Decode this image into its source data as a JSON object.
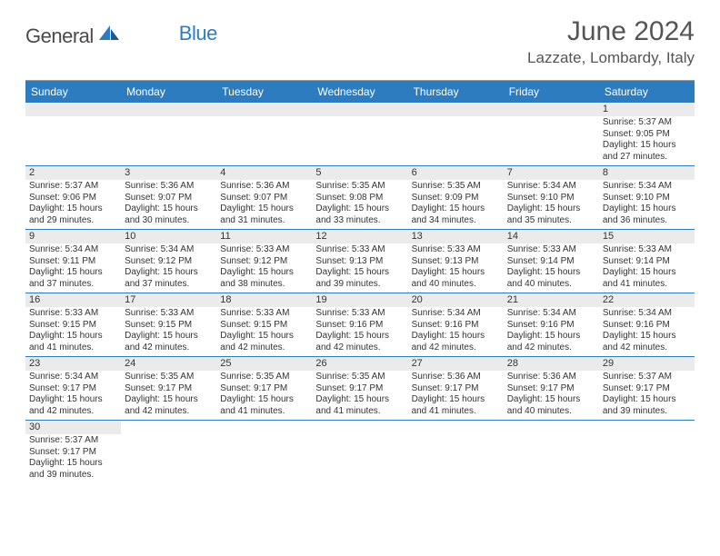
{
  "brand": {
    "part1": "General",
    "part2": "Blue",
    "sail_color": "#2d7cc0",
    "text_color": "#4a4a4a"
  },
  "title": "June 2024",
  "location": "Lazzate, Lombardy, Italy",
  "header_bg": "#2d7cc0",
  "header_text_color": "#ffffff",
  "daynum_bg": "#ebebeb",
  "row_border_color": "#2d7cc0",
  "dow": [
    "Sunday",
    "Monday",
    "Tuesday",
    "Wednesday",
    "Thursday",
    "Friday",
    "Saturday"
  ],
  "weeks": [
    [
      null,
      null,
      null,
      null,
      null,
      null,
      {
        "n": "1",
        "sr": "5:37 AM",
        "ss": "9:05 PM",
        "dl": "15 hours and 27 minutes."
      }
    ],
    [
      {
        "n": "2",
        "sr": "5:37 AM",
        "ss": "9:06 PM",
        "dl": "15 hours and 29 minutes."
      },
      {
        "n": "3",
        "sr": "5:36 AM",
        "ss": "9:07 PM",
        "dl": "15 hours and 30 minutes."
      },
      {
        "n": "4",
        "sr": "5:36 AM",
        "ss": "9:07 PM",
        "dl": "15 hours and 31 minutes."
      },
      {
        "n": "5",
        "sr": "5:35 AM",
        "ss": "9:08 PM",
        "dl": "15 hours and 33 minutes."
      },
      {
        "n": "6",
        "sr": "5:35 AM",
        "ss": "9:09 PM",
        "dl": "15 hours and 34 minutes."
      },
      {
        "n": "7",
        "sr": "5:34 AM",
        "ss": "9:10 PM",
        "dl": "15 hours and 35 minutes."
      },
      {
        "n": "8",
        "sr": "5:34 AM",
        "ss": "9:10 PM",
        "dl": "15 hours and 36 minutes."
      }
    ],
    [
      {
        "n": "9",
        "sr": "5:34 AM",
        "ss": "9:11 PM",
        "dl": "15 hours and 37 minutes."
      },
      {
        "n": "10",
        "sr": "5:34 AM",
        "ss": "9:12 PM",
        "dl": "15 hours and 37 minutes."
      },
      {
        "n": "11",
        "sr": "5:33 AM",
        "ss": "9:12 PM",
        "dl": "15 hours and 38 minutes."
      },
      {
        "n": "12",
        "sr": "5:33 AM",
        "ss": "9:13 PM",
        "dl": "15 hours and 39 minutes."
      },
      {
        "n": "13",
        "sr": "5:33 AM",
        "ss": "9:13 PM",
        "dl": "15 hours and 40 minutes."
      },
      {
        "n": "14",
        "sr": "5:33 AM",
        "ss": "9:14 PM",
        "dl": "15 hours and 40 minutes."
      },
      {
        "n": "15",
        "sr": "5:33 AM",
        "ss": "9:14 PM",
        "dl": "15 hours and 41 minutes."
      }
    ],
    [
      {
        "n": "16",
        "sr": "5:33 AM",
        "ss": "9:15 PM",
        "dl": "15 hours and 41 minutes."
      },
      {
        "n": "17",
        "sr": "5:33 AM",
        "ss": "9:15 PM",
        "dl": "15 hours and 42 minutes."
      },
      {
        "n": "18",
        "sr": "5:33 AM",
        "ss": "9:15 PM",
        "dl": "15 hours and 42 minutes."
      },
      {
        "n": "19",
        "sr": "5:33 AM",
        "ss": "9:16 PM",
        "dl": "15 hours and 42 minutes."
      },
      {
        "n": "20",
        "sr": "5:34 AM",
        "ss": "9:16 PM",
        "dl": "15 hours and 42 minutes."
      },
      {
        "n": "21",
        "sr": "5:34 AM",
        "ss": "9:16 PM",
        "dl": "15 hours and 42 minutes."
      },
      {
        "n": "22",
        "sr": "5:34 AM",
        "ss": "9:16 PM",
        "dl": "15 hours and 42 minutes."
      }
    ],
    [
      {
        "n": "23",
        "sr": "5:34 AM",
        "ss": "9:17 PM",
        "dl": "15 hours and 42 minutes."
      },
      {
        "n": "24",
        "sr": "5:35 AM",
        "ss": "9:17 PM",
        "dl": "15 hours and 42 minutes."
      },
      {
        "n": "25",
        "sr": "5:35 AM",
        "ss": "9:17 PM",
        "dl": "15 hours and 41 minutes."
      },
      {
        "n": "26",
        "sr": "5:35 AM",
        "ss": "9:17 PM",
        "dl": "15 hours and 41 minutes."
      },
      {
        "n": "27",
        "sr": "5:36 AM",
        "ss": "9:17 PM",
        "dl": "15 hours and 41 minutes."
      },
      {
        "n": "28",
        "sr": "5:36 AM",
        "ss": "9:17 PM",
        "dl": "15 hours and 40 minutes."
      },
      {
        "n": "29",
        "sr": "5:37 AM",
        "ss": "9:17 PM",
        "dl": "15 hours and 39 minutes."
      }
    ],
    [
      {
        "n": "30",
        "sr": "5:37 AM",
        "ss": "9:17 PM",
        "dl": "15 hours and 39 minutes."
      },
      null,
      null,
      null,
      null,
      null,
      null
    ]
  ],
  "labels": {
    "sunrise": "Sunrise: ",
    "sunset": "Sunset: ",
    "daylight": "Daylight: "
  }
}
